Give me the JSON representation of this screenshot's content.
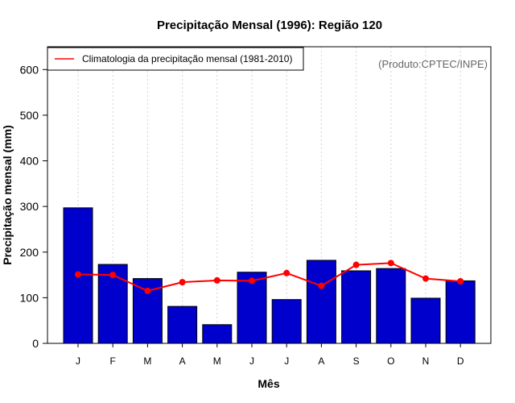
{
  "chart_data": {
    "type": "bar",
    "title": "Precipitação Mensal (1996): Região 120",
    "xlabel": "Mês",
    "ylabel": "Precipitação mensal (mm)",
    "categories": [
      "J",
      "F",
      "M",
      "A",
      "M",
      "J",
      "J",
      "A",
      "S",
      "O",
      "N",
      "D"
    ],
    "yticks": [
      0,
      100,
      200,
      300,
      400,
      500,
      600
    ],
    "ylim": [
      0,
      650
    ],
    "grid": "vertical dotted",
    "series": [
      {
        "name": "Precipitação mensal (1996)",
        "type": "bar",
        "color": "#0000CD",
        "values": [
          297,
          173,
          142,
          81,
          41,
          156,
          96,
          182,
          159,
          164,
          99,
          137
        ]
      },
      {
        "name": "Climatologia da precipitação mensal (1981-2010)",
        "type": "line",
        "color": "#FF0000",
        "values": [
          151,
          150,
          115,
          134,
          138,
          137,
          154,
          126,
          172,
          176,
          142,
          136
        ]
      }
    ],
    "legend": {
      "position": "top-left",
      "label": "Climatologia da precipitação mensal (1981-2010)"
    },
    "credit": "(Produto:CPTEC/INPE)"
  }
}
